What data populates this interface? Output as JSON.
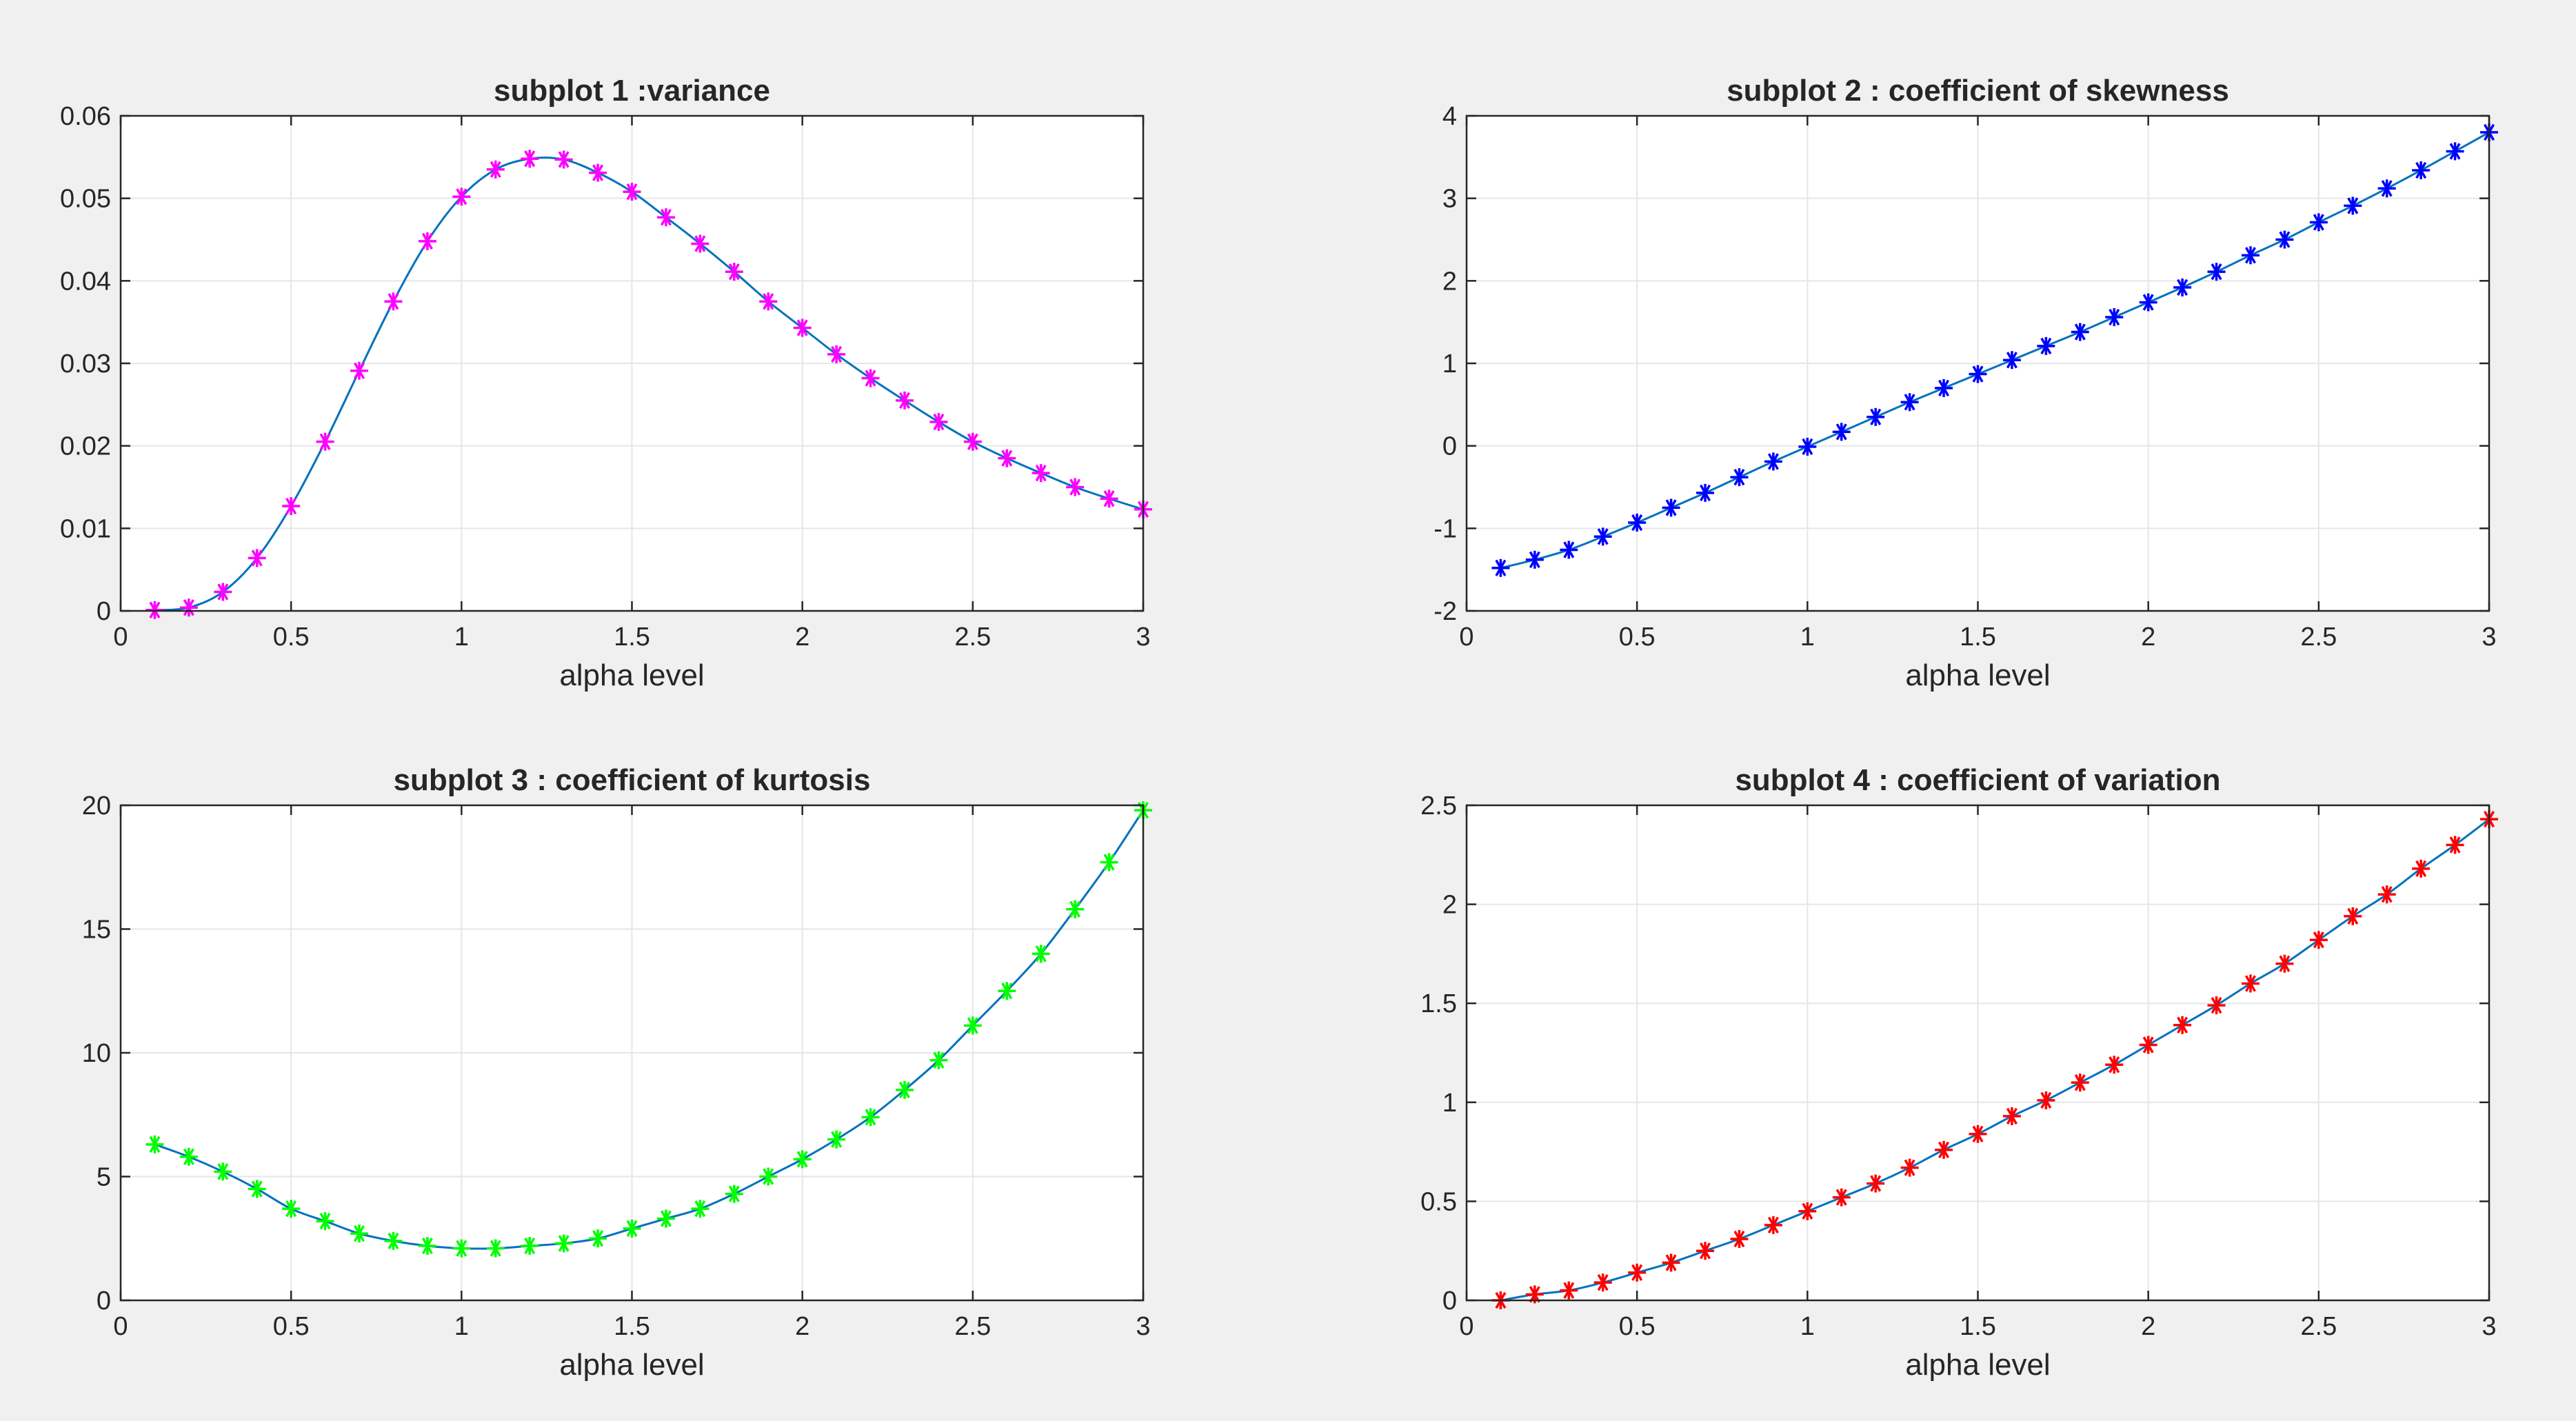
{
  "figure": {
    "background": "#f0f0f0",
    "axes_background": "#ffffff",
    "line_color": "#0072bd",
    "grid_color": "#e6e6e6"
  },
  "chart_data": [
    {
      "type": "line",
      "title": "subplot 1 :variance",
      "xlabel": "alpha level",
      "ylabel": "",
      "xlim": [
        0,
        3
      ],
      "ylim": [
        0,
        0.06
      ],
      "xticks": [
        0,
        0.5,
        1,
        1.5,
        2,
        2.5,
        3
      ],
      "xtick_labels": [
        "0",
        "0.5",
        "1",
        "1.5",
        "2",
        "2.5",
        "3"
      ],
      "yticks": [
        0,
        0.01,
        0.02,
        0.03,
        0.04,
        0.05,
        0.06
      ],
      "ytick_labels": [
        "0",
        "0.01",
        "0.02",
        "0.03",
        "0.04",
        "0.05",
        "0.06"
      ],
      "grid": true,
      "marker": "*",
      "marker_color": "#ff00ff",
      "x": [
        0.1,
        0.2,
        0.3,
        0.4,
        0.5,
        0.6,
        0.7,
        0.8,
        0.9,
        1.0,
        1.1,
        1.2,
        1.3,
        1.4,
        1.5,
        1.6,
        1.7,
        1.8,
        1.9,
        2.0,
        2.1,
        2.2,
        2.3,
        2.4,
        2.5,
        2.6,
        2.7,
        2.8,
        2.9,
        3.0
      ],
      "y": [
        0.0001,
        0.0004,
        0.0023,
        0.0064,
        0.0127,
        0.0205,
        0.0291,
        0.0375,
        0.0448,
        0.0502,
        0.0535,
        0.0548,
        0.0547,
        0.0531,
        0.0508,
        0.0477,
        0.0445,
        0.0411,
        0.0375,
        0.0343,
        0.0311,
        0.0282,
        0.0255,
        0.0229,
        0.0205,
        0.0185,
        0.0167,
        0.015,
        0.0136,
        0.0123
      ]
    },
    {
      "type": "line",
      "title": "subplot 2 : coefficient of skewness",
      "xlabel": "alpha level",
      "ylabel": "",
      "xlim": [
        0,
        3
      ],
      "ylim": [
        -2,
        4
      ],
      "xticks": [
        0,
        0.5,
        1,
        1.5,
        2,
        2.5,
        3
      ],
      "xtick_labels": [
        "0",
        "0.5",
        "1",
        "1.5",
        "2",
        "2.5",
        "3"
      ],
      "yticks": [
        -2,
        -1,
        0,
        1,
        2,
        3,
        4
      ],
      "ytick_labels": [
        "-2",
        "-1",
        "0",
        "1",
        "2",
        "3",
        "4"
      ],
      "grid": true,
      "marker": "*",
      "marker_color": "#0000ff",
      "x": [
        0.1,
        0.2,
        0.3,
        0.4,
        0.5,
        0.6,
        0.7,
        0.8,
        0.9,
        1.0,
        1.1,
        1.2,
        1.3,
        1.4,
        1.5,
        1.6,
        1.7,
        1.8,
        1.9,
        2.0,
        2.1,
        2.2,
        2.3,
        2.4,
        2.5,
        2.6,
        2.7,
        2.8,
        2.9,
        3.0
      ],
      "y": [
        -1.48,
        -1.38,
        -1.26,
        -1.1,
        -0.93,
        -0.75,
        -0.57,
        -0.38,
        -0.19,
        -0.01,
        0.17,
        0.35,
        0.53,
        0.7,
        0.87,
        1.04,
        1.21,
        1.38,
        1.56,
        1.74,
        1.92,
        2.11,
        2.31,
        2.5,
        2.71,
        2.91,
        3.12,
        3.34,
        3.57,
        3.8
      ]
    },
    {
      "type": "line",
      "title": "subplot 3 : coefficient of kurtosis",
      "xlabel": "alpha level",
      "ylabel": "",
      "xlim": [
        0,
        3
      ],
      "ylim": [
        0,
        20
      ],
      "xticks": [
        0,
        0.5,
        1,
        1.5,
        2,
        2.5,
        3
      ],
      "xtick_labels": [
        "0",
        "0.5",
        "1",
        "1.5",
        "2",
        "2.5",
        "3"
      ],
      "yticks": [
        0,
        5,
        10,
        15,
        20
      ],
      "ytick_labels": [
        "0",
        "5",
        "10",
        "15",
        "20"
      ],
      "grid": true,
      "marker": "*",
      "marker_color": "#00ff00",
      "x": [
        0.1,
        0.2,
        0.3,
        0.4,
        0.5,
        0.6,
        0.7,
        0.8,
        0.9,
        1.0,
        1.1,
        1.2,
        1.3,
        1.4,
        1.5,
        1.6,
        1.7,
        1.8,
        1.9,
        2.0,
        2.1,
        2.2,
        2.3,
        2.4,
        2.5,
        2.6,
        2.7,
        2.8,
        2.9,
        3.0
      ],
      "y": [
        6.3,
        5.8,
        5.2,
        4.5,
        3.7,
        3.2,
        2.7,
        2.4,
        2.2,
        2.1,
        2.1,
        2.2,
        2.3,
        2.5,
        2.9,
        3.3,
        3.7,
        4.3,
        5.0,
        5.7,
        6.5,
        7.4,
        8.5,
        9.7,
        11.1,
        12.5,
        14.0,
        15.8,
        17.7,
        19.8
      ]
    },
    {
      "type": "line",
      "title": "subplot 4 : coefficient of variation",
      "xlabel": "alpha level",
      "ylabel": "",
      "xlim": [
        0,
        3
      ],
      "ylim": [
        0,
        2.5
      ],
      "xticks": [
        0,
        0.5,
        1,
        1.5,
        2,
        2.5,
        3
      ],
      "xtick_labels": [
        "0",
        "0.5",
        "1",
        "1.5",
        "2",
        "2.5",
        "3"
      ],
      "yticks": [
        0,
        0.5,
        1,
        1.5,
        2,
        2.5
      ],
      "ytick_labels": [
        "0",
        "0.5",
        "1",
        "1.5",
        "2",
        "2.5"
      ],
      "grid": true,
      "marker": "*",
      "marker_color": "#ff0000",
      "x": [
        0.1,
        0.2,
        0.3,
        0.4,
        0.5,
        0.6,
        0.7,
        0.8,
        0.9,
        1.0,
        1.1,
        1.2,
        1.3,
        1.4,
        1.5,
        1.6,
        1.7,
        1.8,
        1.9,
        2.0,
        2.1,
        2.2,
        2.3,
        2.4,
        2.5,
        2.6,
        2.7,
        2.8,
        2.9,
        3.0
      ],
      "y": [
        0.0,
        0.03,
        0.05,
        0.09,
        0.14,
        0.19,
        0.25,
        0.31,
        0.38,
        0.45,
        0.52,
        0.59,
        0.67,
        0.76,
        0.84,
        0.93,
        1.01,
        1.1,
        1.19,
        1.29,
        1.39,
        1.49,
        1.6,
        1.7,
        1.82,
        1.94,
        2.05,
        2.18,
        2.3,
        2.43
      ]
    }
  ]
}
